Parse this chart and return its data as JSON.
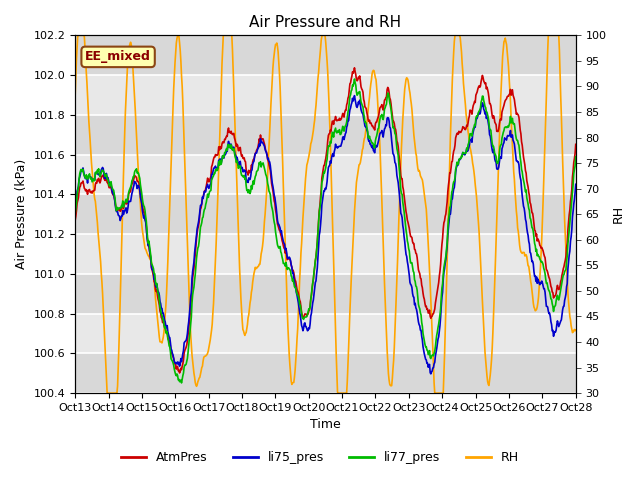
{
  "title": "Air Pressure and RH",
  "ylabel_left": "Air Pressure (kPa)",
  "ylabel_right": "RH",
  "xlabel": "Time",
  "ylim_left": [
    100.4,
    102.2
  ],
  "ylim_right": [
    30,
    100
  ],
  "yticks_left": [
    100.4,
    100.6,
    100.8,
    101.0,
    101.2,
    101.4,
    101.6,
    101.8,
    102.0,
    102.2
  ],
  "yticks_right": [
    30,
    35,
    40,
    45,
    50,
    55,
    60,
    65,
    70,
    75,
    80,
    85,
    90,
    95,
    100
  ],
  "xtick_labels": [
    "Oct 13",
    "Oct 14",
    "Oct 15",
    "Oct 16",
    "Oct 17",
    "Oct 18",
    "Oct 19",
    "Oct 20",
    "Oct 21",
    "Oct 22",
    "Oct 23",
    "Oct 24",
    "Oct 25",
    "Oct 26",
    "Oct 27",
    "Oct 28"
  ],
  "annotation_text": "EE_mixed",
  "annotation_facecolor": "#ffffb0",
  "annotation_edgecolor": "#8B4513",
  "annotation_textcolor": "#8B0000",
  "line_colors": {
    "AtmPres": "#cc0000",
    "li75_pres": "#0000cc",
    "li77_pres": "#00bb00",
    "RH": "#ffa500"
  },
  "line_widths": {
    "AtmPres": 1.2,
    "li75_pres": 1.2,
    "li77_pres": 1.2,
    "RH": 1.2
  },
  "legend_labels": [
    "AtmPres",
    "li75_pres",
    "li77_pres",
    "RH"
  ],
  "background_color": "#ffffff",
  "axes_facecolor": "#f0f0f0",
  "band_light": "#e8e8e8",
  "band_dark": "#d8d8d8",
  "grid_color": "#ffffff",
  "title_fontsize": 11,
  "axes_label_fontsize": 9,
  "tick_fontsize": 8
}
